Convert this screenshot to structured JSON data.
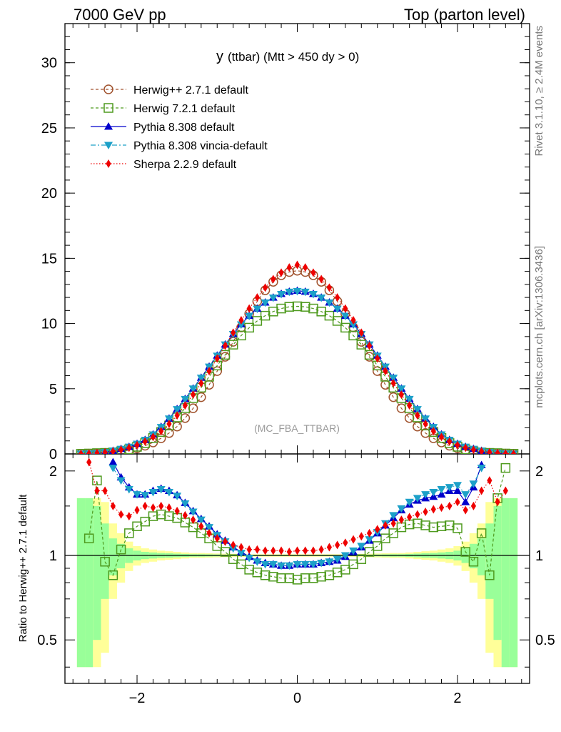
{
  "header": {
    "left": "7000 GeV pp",
    "right": "Top (parton level)"
  },
  "side_labels": {
    "rivet": "Rivet 3.1.10, ≥ 2.4M events",
    "mcplots": "mcplots.cern.ch [arXiv:1306.3436]"
  },
  "chart_data": {
    "type": "line",
    "title": "y",
    "title_suffix": "(ttbar) (Mtt > 450 dy > 0)",
    "watermark": "(MC_FBA_TTBAR)",
    "xlabel": "",
    "ylabel": "",
    "ratio_ylabel": "Ratio to Herwig++ 2.7.1 default",
    "xlim": [
      -2.9,
      2.9
    ],
    "ylim": [
      0,
      33
    ],
    "ratio_ylim": [
      0.35,
      2.3
    ],
    "x_ticks": [
      "−2",
      "0",
      "2"
    ],
    "y_ticks": [
      "0",
      "5",
      "10",
      "15",
      "20",
      "25",
      "30"
    ],
    "ratio_ticks": [
      "0.5",
      "1",
      "2"
    ],
    "legend_position": "top-left",
    "colors": {
      "herwigpp": "#a0522d",
      "herwig7": "#4e9a1e",
      "pythia": "#0000cc",
      "vincia": "#1ca0c8",
      "sherpa": "#ee0000",
      "band_yellow": "#ffff99",
      "band_green": "#99ff99"
    },
    "x": [
      -2.7,
      -2.6,
      -2.5,
      -2.4,
      -2.3,
      -2.2,
      -2.1,
      -2.0,
      -1.9,
      -1.8,
      -1.7,
      -1.6,
      -1.5,
      -1.4,
      -1.3,
      -1.2,
      -1.1,
      -1.0,
      -0.9,
      -0.8,
      -0.7,
      -0.6,
      -0.5,
      -0.4,
      -0.3,
      -0.2,
      -0.1,
      0.0,
      0.1,
      0.2,
      0.3,
      0.4,
      0.5,
      0.6,
      0.7,
      0.8,
      0.9,
      1.0,
      1.1,
      1.2,
      1.3,
      1.4,
      1.5,
      1.6,
      1.7,
      1.8,
      1.9,
      2.0,
      2.1,
      2.2,
      2.3,
      2.4,
      2.5,
      2.6,
      2.7
    ],
    "series": [
      {
        "name": "Herwig++ 2.7.1 default",
        "key": "herwigpp",
        "marker": "circle-open",
        "dash": "4,3",
        "values": [
          0.01,
          0.02,
          0.04,
          0.07,
          0.12,
          0.19,
          0.29,
          0.43,
          0.63,
          0.88,
          1.2,
          1.6,
          2.1,
          2.75,
          3.5,
          4.35,
          5.3,
          6.35,
          7.45,
          8.6,
          9.7,
          10.75,
          11.7,
          12.55,
          13.2,
          13.7,
          13.95,
          14.05,
          13.95,
          13.7,
          13.2,
          12.55,
          11.7,
          10.75,
          9.7,
          8.6,
          7.45,
          6.35,
          5.3,
          4.35,
          3.5,
          2.75,
          2.1,
          1.6,
          1.2,
          0.88,
          0.63,
          0.43,
          0.29,
          0.19,
          0.12,
          0.07,
          0.04,
          0.02,
          0.01
        ],
        "ratio": [
          null,
          1.15,
          1.85,
          1.0,
          0.85,
          1.1,
          1.25,
          1.3,
          1.35,
          1.4,
          1.42,
          1.4,
          1.38,
          1.33,
          1.28,
          1.22,
          1.17,
          1.1,
          1.05,
          1.0,
          0.95,
          0.91,
          0.88,
          0.86,
          0.85,
          0.84,
          0.84,
          0.84,
          0.84,
          0.84,
          0.85,
          0.86,
          0.88,
          0.91,
          0.95,
          1.0,
          1.05,
          1.1,
          1.17,
          1.22,
          1.28,
          1.3,
          1.3,
          1.28,
          1.27,
          1.28,
          1.3,
          1.25,
          1.05,
          0.95,
          1.2,
          0.85,
          1.6,
          2.05,
          null
        ]
      },
      {
        "name": "Herwig 7.2.1 default",
        "key": "herwig7",
        "marker": "square-open",
        "dash": "4,3",
        "values": [
          0.01,
          0.03,
          0.06,
          0.08,
          0.11,
          0.2,
          0.35,
          0.55,
          0.83,
          1.22,
          1.68,
          2.18,
          2.8,
          3.52,
          4.28,
          5.08,
          5.92,
          6.78,
          7.6,
          8.38,
          9.08,
          9.68,
          10.2,
          10.6,
          10.92,
          11.15,
          11.28,
          11.32,
          11.28,
          11.15,
          10.92,
          10.6,
          10.2,
          9.68,
          9.08,
          8.38,
          7.6,
          6.78,
          5.92,
          5.08,
          4.28,
          3.52,
          2.8,
          2.18,
          1.68,
          1.22,
          0.83,
          0.55,
          0.35,
          0.2,
          0.11,
          0.08,
          0.06,
          0.03,
          0.01
        ]
      },
      {
        "name": "Pythia 8.308 default",
        "key": "pythia",
        "marker": "triangle-up",
        "dash": "",
        "values": [
          0.01,
          0.02,
          0.05,
          0.12,
          0.25,
          0.39,
          0.55,
          0.78,
          1.08,
          1.5,
          2.08,
          2.72,
          3.45,
          4.22,
          5.02,
          5.85,
          6.7,
          7.55,
          8.4,
          9.2,
          9.95,
          10.6,
          11.15,
          11.62,
          12.0,
          12.28,
          12.45,
          12.52,
          12.45,
          12.28,
          12.0,
          11.62,
          11.15,
          10.6,
          9.95,
          9.2,
          8.4,
          7.55,
          6.7,
          5.85,
          5.02,
          4.22,
          3.45,
          2.72,
          2.08,
          1.5,
          1.08,
          0.78,
          0.55,
          0.39,
          0.25,
          0.12,
          0.05,
          0.02,
          0.01
        ],
        "ratio": [
          null,
          null,
          null,
          null,
          2.15,
          1.9,
          1.75,
          1.65,
          1.65,
          1.7,
          1.73,
          1.7,
          1.64,
          1.54,
          1.44,
          1.35,
          1.27,
          1.19,
          1.13,
          1.07,
          1.03,
          0.99,
          0.96,
          0.94,
          0.93,
          0.92,
          0.92,
          0.93,
          0.93,
          0.93,
          0.94,
          0.95,
          0.96,
          0.99,
          1.03,
          1.07,
          1.13,
          1.2,
          1.28,
          1.36,
          1.45,
          1.52,
          1.57,
          1.6,
          1.62,
          1.65,
          1.7,
          1.7,
          1.55,
          1.75,
          2.1,
          null,
          null,
          null,
          null
        ]
      },
      {
        "name": "Pythia 8.308 vincia-default",
        "key": "vincia",
        "marker": "triangle-down",
        "dash": "7,3,2,3",
        "values": [
          0.01,
          0.02,
          0.05,
          0.12,
          0.24,
          0.38,
          0.54,
          0.77,
          1.07,
          1.48,
          2.05,
          2.7,
          3.42,
          4.2,
          5.0,
          5.83,
          6.68,
          7.52,
          8.38,
          9.18,
          9.92,
          10.58,
          11.12,
          11.6,
          11.98,
          12.25,
          12.42,
          12.48,
          12.42,
          12.25,
          11.98,
          11.6,
          11.12,
          10.58,
          9.92,
          9.18,
          8.38,
          7.52,
          6.68,
          5.83,
          5.0,
          4.2,
          3.42,
          2.7,
          2.05,
          1.48,
          1.07,
          0.77,
          0.54,
          0.38,
          0.24,
          0.12,
          0.05,
          0.02,
          0.01
        ],
        "ratio": [
          null,
          null,
          null,
          null,
          2.05,
          1.85,
          1.72,
          1.65,
          1.64,
          1.68,
          1.72,
          1.68,
          1.63,
          1.53,
          1.43,
          1.34,
          1.26,
          1.18,
          1.12,
          1.06,
          1.02,
          0.98,
          0.95,
          0.93,
          0.93,
          0.92,
          0.92,
          0.93,
          0.93,
          0.93,
          0.94,
          0.95,
          0.97,
          1.0,
          1.04,
          1.08,
          1.14,
          1.21,
          1.3,
          1.39,
          1.47,
          1.55,
          1.6,
          1.65,
          1.68,
          1.72,
          1.75,
          1.78,
          1.65,
          1.8,
          2.05,
          null,
          null,
          null,
          null
        ]
      },
      {
        "name": "Sherpa 2.2.9 default",
        "key": "sherpa",
        "marker": "diamond",
        "dash": "1.5,2.5",
        "values": [
          0.01,
          0.03,
          0.07,
          0.12,
          0.2,
          0.32,
          0.47,
          0.68,
          0.95,
          1.3,
          1.75,
          2.3,
          2.95,
          3.72,
          4.55,
          5.42,
          6.35,
          7.32,
          8.3,
          9.3,
          10.25,
          11.15,
          12.0,
          12.75,
          13.4,
          13.9,
          14.3,
          14.5,
          14.3,
          13.9,
          13.4,
          12.75,
          12.0,
          11.15,
          10.25,
          9.3,
          8.3,
          7.32,
          6.35,
          5.42,
          4.55,
          3.72,
          2.95,
          2.3,
          1.75,
          1.3,
          0.95,
          0.68,
          0.47,
          0.32,
          0.2,
          0.12,
          0.07,
          0.03,
          0.01
        ],
        "ratio": [
          null,
          2.15,
          1.7,
          1.7,
          1.5,
          1.4,
          1.38,
          1.45,
          1.5,
          1.48,
          1.5,
          1.48,
          1.44,
          1.39,
          1.34,
          1.27,
          1.2,
          1.15,
          1.12,
          1.09,
          1.07,
          1.05,
          1.05,
          1.04,
          1.04,
          1.04,
          1.03,
          1.04,
          1.04,
          1.04,
          1.05,
          1.07,
          1.09,
          1.11,
          1.14,
          1.17,
          1.2,
          1.24,
          1.28,
          1.3,
          1.34,
          1.37,
          1.4,
          1.43,
          1.46,
          1.48,
          1.5,
          1.55,
          1.45,
          1.5,
          1.7,
          1.85,
          1.55,
          1.7,
          null
        ]
      }
    ],
    "herwig7_ratio": [
      null,
      1.15,
      1.85,
      0.95,
      0.85,
      1.05,
      1.2,
      1.27,
      1.32,
      1.38,
      1.4,
      1.38,
      1.36,
      1.31,
      1.26,
      1.2,
      1.15,
      1.08,
      1.03,
      0.97,
      0.93,
      0.89,
      0.87,
      0.85,
      0.84,
      0.83,
      0.83,
      0.82,
      0.83,
      0.83,
      0.84,
      0.85,
      0.87,
      0.89,
      0.93,
      0.97,
      1.03,
      1.08,
      1.15,
      1.2,
      1.26,
      1.29,
      1.3,
      1.28,
      1.26,
      1.27,
      1.28,
      1.25,
      1.03,
      0.95,
      1.2,
      0.85,
      1.6,
      2.05,
      null
    ],
    "band_yellow_halfwidth": [
      0.6,
      0.6,
      0.6,
      0.55,
      0.3,
      0.2,
      0.12,
      0.08,
      0.06,
      0.05,
      0.04,
      0.035,
      0.03,
      0.025,
      0.02,
      0.02,
      0.018,
      0.016,
      0.014,
      0.013,
      0.012,
      0.011,
      0.01,
      0.01,
      0.01,
      0.01,
      0.01,
      0.01,
      0.01,
      0.01,
      0.01,
      0.01,
      0.01,
      0.011,
      0.012,
      0.013,
      0.014,
      0.016,
      0.018,
      0.02,
      0.02,
      0.025,
      0.03,
      0.035,
      0.04,
      0.05,
      0.06,
      0.08,
      0.12,
      0.2,
      0.3,
      0.55,
      0.6,
      0.6,
      0.6
    ],
    "band_green_halfwidth": [
      0.6,
      0.6,
      0.5,
      0.3,
      0.15,
      0.1,
      0.06,
      0.04,
      0.03,
      0.025,
      0.02,
      0.018,
      0.015,
      0.012,
      0.01,
      0.01,
      0.009,
      0.008,
      0.007,
      0.006,
      0.006,
      0.005,
      0.005,
      0.005,
      0.005,
      0.005,
      0.005,
      0.005,
      0.005,
      0.005,
      0.005,
      0.005,
      0.005,
      0.005,
      0.006,
      0.006,
      0.007,
      0.008,
      0.009,
      0.01,
      0.01,
      0.012,
      0.015,
      0.018,
      0.02,
      0.025,
      0.03,
      0.04,
      0.06,
      0.1,
      0.15,
      0.3,
      0.5,
      0.6,
      0.6
    ]
  }
}
